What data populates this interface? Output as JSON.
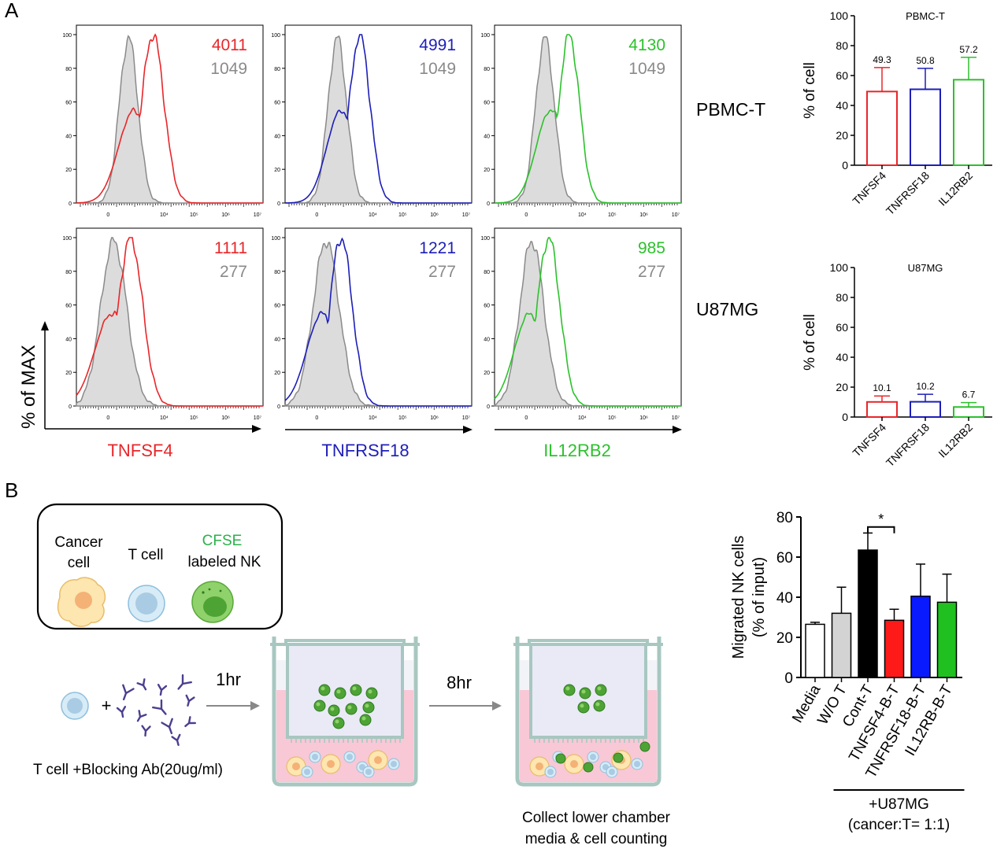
{
  "panel_letters": [
    "A",
    "B"
  ],
  "flow": {
    "y_axis_label": "% of MAX",
    "y_ticks": [
      "0",
      "20",
      "40",
      "60",
      "80",
      "100"
    ],
    "x_tick_labels": [
      "0",
      "10⁴",
      "10⁵",
      "10⁶",
      "10⁷"
    ],
    "row_labels": [
      "PBMC-T",
      "U87MG"
    ],
    "column_labels": [
      "TNFSF4",
      "TNFRSF18",
      "IL12RB2"
    ],
    "colors": {
      "TNFSF4": "#e8262a",
      "TNFRSF18": "#1d1eb8",
      "IL12RB2": "#2cc12c",
      "control": "#8a8a8a",
      "control_fill": "#dcdcdc"
    },
    "mfi": [
      [
        {
          "stain": "4011",
          "control": "1049"
        },
        {
          "stain": "4991",
          "control": "1049"
        },
        {
          "stain": "4130",
          "control": "1049"
        }
      ],
      [
        {
          "stain": "1111",
          "control": "277"
        },
        {
          "stain": "1221",
          "control": "277"
        },
        {
          "stain": "985",
          "control": "277"
        }
      ]
    ]
  },
  "chart_data": [
    {
      "type": "bar",
      "title": "PBMC-T",
      "ylabel": "% of cell",
      "categories": [
        "TNFSF4",
        "TNFRSF18",
        "IL12RB2"
      ],
      "values": [
        49.3,
        50.8,
        57.2
      ],
      "errors": [
        16,
        14,
        15
      ],
      "value_labels": [
        "49.3",
        "50.8",
        "57.2"
      ],
      "ylim": [
        0,
        100
      ],
      "yticks": [
        "0",
        "20",
        "40",
        "60",
        "80",
        "100"
      ],
      "colors": [
        "#e8262a",
        "#1d1eb8",
        "#2cc12c"
      ]
    },
    {
      "type": "bar",
      "title": "U87MG",
      "ylabel": "% of cell",
      "categories": [
        "TNFSF4",
        "TNFRSF18",
        "IL12RB2"
      ],
      "values": [
        10.1,
        10.2,
        6.7
      ],
      "errors": [
        4,
        5,
        3
      ],
      "value_labels": [
        "10.1",
        "10.2",
        "6.7"
      ],
      "ylim": [
        0,
        100
      ],
      "yticks": [
        "0",
        "20",
        "40",
        "60",
        "80",
        "100"
      ],
      "colors": [
        "#e8262a",
        "#1d1eb8",
        "#2cc12c"
      ]
    },
    {
      "type": "bar",
      "ylabel": "Migrated NK cells\n(% of input)",
      "ylabel_lines": [
        "Migrated NK cells",
        "(% of input)"
      ],
      "categories": [
        "Media",
        "W/O T",
        "Cont-T",
        "TNFSF4-B-T",
        "TNFRSF18-B-T",
        "IL12RB-B-T"
      ],
      "values": [
        26.5,
        32,
        63.5,
        28.5,
        40.5,
        37.5
      ],
      "errors": [
        1,
        13,
        8.5,
        5.5,
        16,
        14
      ],
      "ylim": [
        0,
        80
      ],
      "yticks": [
        "0",
        "20",
        "40",
        "60",
        "80"
      ],
      "colors": [
        "#ffffff",
        "#d3d3d3",
        "#000000",
        "#ff1a1a",
        "#0a1aff",
        "#20c020"
      ],
      "significance": {
        "marker": "*",
        "between": [
          "Cont-T",
          "TNFSF4-B-T"
        ]
      },
      "group_label_lines": [
        "+U87MG",
        "(cancer:T= 1:1)"
      ]
    }
  ],
  "schematic": {
    "legend": {
      "cancer_cell": "Cancer\ncell",
      "cancer_lines": [
        "Cancer",
        "cell"
      ],
      "t_cell": "T cell",
      "cfse_title": "CFSE",
      "nk_label": "labeled NK"
    },
    "step1_time": "1hr",
    "step2_time": "8hr",
    "mix_caption": "T cell +Blocking Ab(20ug/ml)",
    "plus": "+",
    "collect_lines": [
      "Collect lower chamber",
      "media  & cell counting"
    ]
  }
}
